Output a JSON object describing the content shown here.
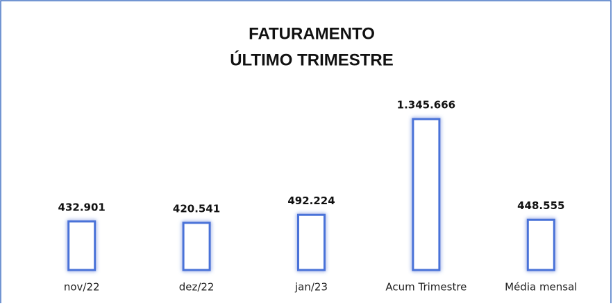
{
  "chart_data": {
    "type": "bar",
    "title": [
      "FATURAMENTO",
      "ÚLTIMO TRIMESTRE"
    ],
    "categories": [
      "nov/22",
      "dez/22",
      "jan/23",
      "Acum Trimestre",
      "Média mensal"
    ],
    "values": [
      432901,
      420541,
      492224,
      1345666,
      448555
    ],
    "value_labels": [
      "432.901",
      "420.541",
      "492.224",
      "1.345.666",
      "448.555"
    ],
    "color": "#4a72d8"
  }
}
